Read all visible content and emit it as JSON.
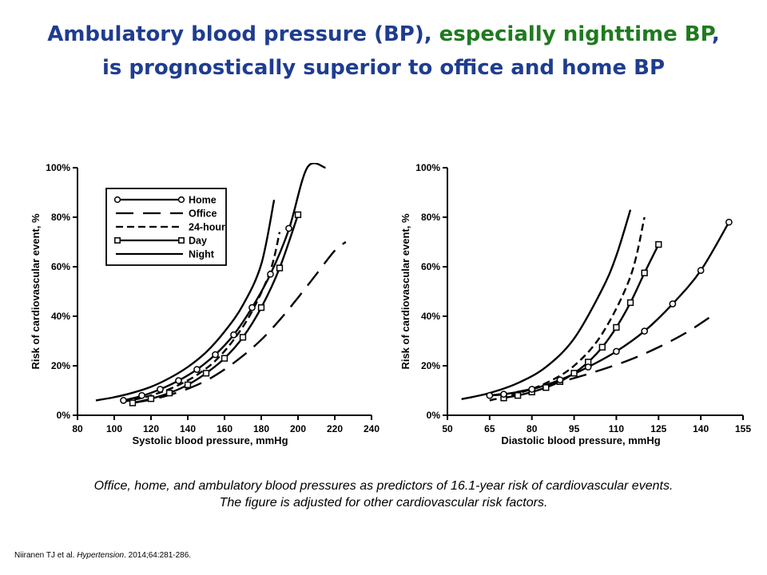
{
  "title": {
    "part1": "Ambulatory blood pressure (BP), ",
    "part2": "especially nighttime BP",
    "part3": ",",
    "line2": "is prognostically superior to office and home BP"
  },
  "caption": {
    "line1": "Office, home, and ambulatory blood pressures as predictors of 16.1-year risk of cardiovascular events.",
    "line2": "The figure is adjusted for other cardiovascular risk factors."
  },
  "citation": {
    "authors": "Niiranen TJ et al. ",
    "journal": "Hypertension",
    "details": ". 2014;64:281-286."
  },
  "colors": {
    "title": "#1f3d8f",
    "highlight": "#1f7a1f"
  },
  "chart_data": [
    {
      "type": "line",
      "xlabel": "Systolic blood pressure, mmHg",
      "ylabel": "Risk of cardiovascular event, %",
      "xlim": [
        80,
        240
      ],
      "ylim": [
        0,
        100
      ],
      "x_ticks": [
        80,
        100,
        120,
        140,
        160,
        180,
        200,
        220,
        240
      ],
      "y_ticks": [
        0,
        20,
        40,
        60,
        80,
        100
      ],
      "y_tick_labels": [
        "0%",
        "20%",
        "40%",
        "60%",
        "80%",
        "100%"
      ],
      "legend": {
        "placement": "top-left",
        "entries": [
          "Home",
          "Office",
          "24-hour",
          "Day",
          "Night"
        ]
      },
      "series": [
        {
          "name": "Night",
          "style": "solid",
          "marker": "none",
          "x": [
            90,
            100,
            110,
            120,
            130,
            140,
            150,
            160,
            170,
            180,
            187
          ],
          "y": [
            6,
            7.3,
            9.1,
            11.5,
            15,
            19.5,
            25.5,
            33.8,
            44.5,
            61,
            87
          ]
        },
        {
          "name": "24-hour",
          "style": "dashed",
          "marker": "none",
          "x": [
            105,
            115,
            125,
            135,
            145,
            155,
            165,
            175,
            185,
            190
          ],
          "y": [
            5.5,
            7,
            9.2,
            12.2,
            16.3,
            22,
            30.5,
            42,
            58.5,
            74
          ]
        },
        {
          "name": "Home",
          "style": "solid",
          "marker": "circle",
          "x": [
            105,
            115,
            125,
            135,
            145,
            155,
            165,
            175,
            185,
            195,
            205,
            215
          ],
          "y": [
            6,
            7.8,
            10.5,
            14,
            18.5,
            24.5,
            32.5,
            43.5,
            57,
            75,
            100,
            100
          ],
          "markers_x": [
            105,
            115,
            125,
            135,
            145,
            155,
            165,
            175,
            185,
            195
          ],
          "markers_y": [
            6,
            8,
            10.5,
            14,
            18.5,
            24.5,
            32.5,
            43.5,
            57,
            75.5
          ]
        },
        {
          "name": "Day",
          "style": "solid",
          "marker": "square",
          "x": [
            110,
            120,
            130,
            140,
            150,
            160,
            170,
            180,
            190,
            200
          ],
          "y": [
            5,
            6.7,
            9,
            12.3,
            17,
            23,
            31.5,
            43.5,
            59.5,
            81
          ]
        },
        {
          "name": "Office",
          "style": "longdash",
          "marker": "none",
          "x": [
            110,
            120,
            130,
            140,
            150,
            160,
            170,
            180,
            190,
            200,
            210,
            220,
            226
          ],
          "y": [
            5,
            6.3,
            8.2,
            10.7,
            14,
            18.5,
            24,
            30.5,
            38.5,
            47.5,
            57,
            66.5,
            70
          ]
        }
      ]
    },
    {
      "type": "line",
      "xlabel": "Diastolic blood pressure, mmHg",
      "ylabel": "Risk of cardiovascular event, %",
      "xlim": [
        50,
        155
      ],
      "ylim": [
        0,
        100
      ],
      "x_ticks": [
        50,
        65,
        80,
        95,
        110,
        125,
        140,
        155
      ],
      "y_ticks": [
        0,
        20,
        40,
        60,
        80,
        100
      ],
      "y_tick_labels": [
        "0%",
        "20%",
        "40%",
        "60%",
        "80%",
        "100%"
      ],
      "series": [
        {
          "name": "Night",
          "style": "solid",
          "marker": "none",
          "x": [
            55,
            65,
            75,
            85,
            95,
            105,
            110,
            115
          ],
          "y": [
            6.5,
            9,
            13,
            19.5,
            31,
            51,
            64.5,
            83
          ]
        },
        {
          "name": "24-hour",
          "style": "dashed",
          "marker": "none",
          "x": [
            65,
            75,
            85,
            95,
            105,
            115,
            120
          ],
          "y": [
            6,
            8.8,
            13,
            20,
            33,
            56,
            80
          ]
        },
        {
          "name": "Day",
          "style": "solid",
          "marker": "square",
          "x": [
            70,
            75,
            80,
            85,
            90,
            95,
            100,
            105,
            110,
            115,
            120,
            125
          ],
          "y": [
            7,
            8,
            9.4,
            11.2,
            13.6,
            17,
            21.5,
            27.5,
            35.5,
            45.5,
            57.5,
            69
          ]
        },
        {
          "name": "Home",
          "style": "solid",
          "marker": "circle",
          "x": [
            65,
            70,
            80,
            90,
            100,
            110,
            120,
            130,
            140,
            150
          ],
          "y": [
            8,
            8.5,
            10.5,
            14.3,
            19.5,
            25.8,
            34,
            45,
            58.5,
            78
          ]
        },
        {
          "name": "Office",
          "style": "longdash",
          "marker": "none",
          "x": [
            65,
            75,
            85,
            95,
            105,
            115,
            125,
            135,
            145
          ],
          "y": [
            8,
            9.5,
            12,
            15,
            18.5,
            22.5,
            27.5,
            33.5,
            41
          ]
        }
      ]
    }
  ]
}
